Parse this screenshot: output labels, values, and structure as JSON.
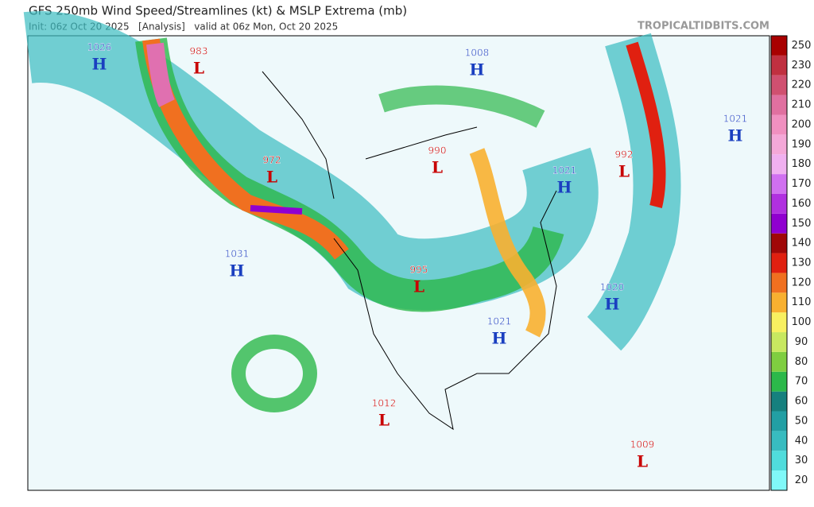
{
  "header": {
    "title": "GFS 250mb Wind Speed/Streamlines (kt) & MSLP Extrema (mb)",
    "subtitle": "Init: 06z Oct 20 2025   [Analysis]   valid at 06z Mon, Oct 20 2025",
    "brand": "TROPICALTIDBITS.COM"
  },
  "centers": [
    {
      "pressure": "1026",
      "kind": "H"
    },
    {
      "pressure": "983",
      "kind": "L"
    },
    {
      "pressure": "1008",
      "kind": "H"
    },
    {
      "pressure": "1021",
      "kind": "H"
    },
    {
      "pressure": "972",
      "kind": "L"
    },
    {
      "pressure": "990",
      "kind": "L"
    },
    {
      "pressure": "1021",
      "kind": "H"
    },
    {
      "pressure": "992",
      "kind": "L"
    },
    {
      "pressure": "1031",
      "kind": "H"
    },
    {
      "pressure": "995",
      "kind": "L"
    },
    {
      "pressure": "1020",
      "kind": "H"
    },
    {
      "pressure": "1021",
      "kind": "H"
    },
    {
      "pressure": "1012",
      "kind": "L"
    },
    {
      "pressure": "1009",
      "kind": "L"
    }
  ],
  "colorbar": {
    "ticks": [
      20,
      30,
      40,
      50,
      60,
      70,
      80,
      90,
      100,
      110,
      120,
      130,
      140,
      150,
      160,
      170,
      180,
      190,
      200,
      210,
      220,
      230,
      250
    ],
    "colors": [
      "#80f8f8",
      "#50dcdc",
      "#38bcc0",
      "#229fa4",
      "#16807e",
      "#2cb84a",
      "#7fce40",
      "#c8e860",
      "#f8f060",
      "#f8b030",
      "#f07020",
      "#e02010",
      "#a00808",
      "#9000d0",
      "#b030e0",
      "#d070f0",
      "#f0b0f0",
      "#f4a8d8",
      "#f090c0",
      "#e070a0",
      "#d05070",
      "#c03040",
      "#a80000"
    ]
  }
}
